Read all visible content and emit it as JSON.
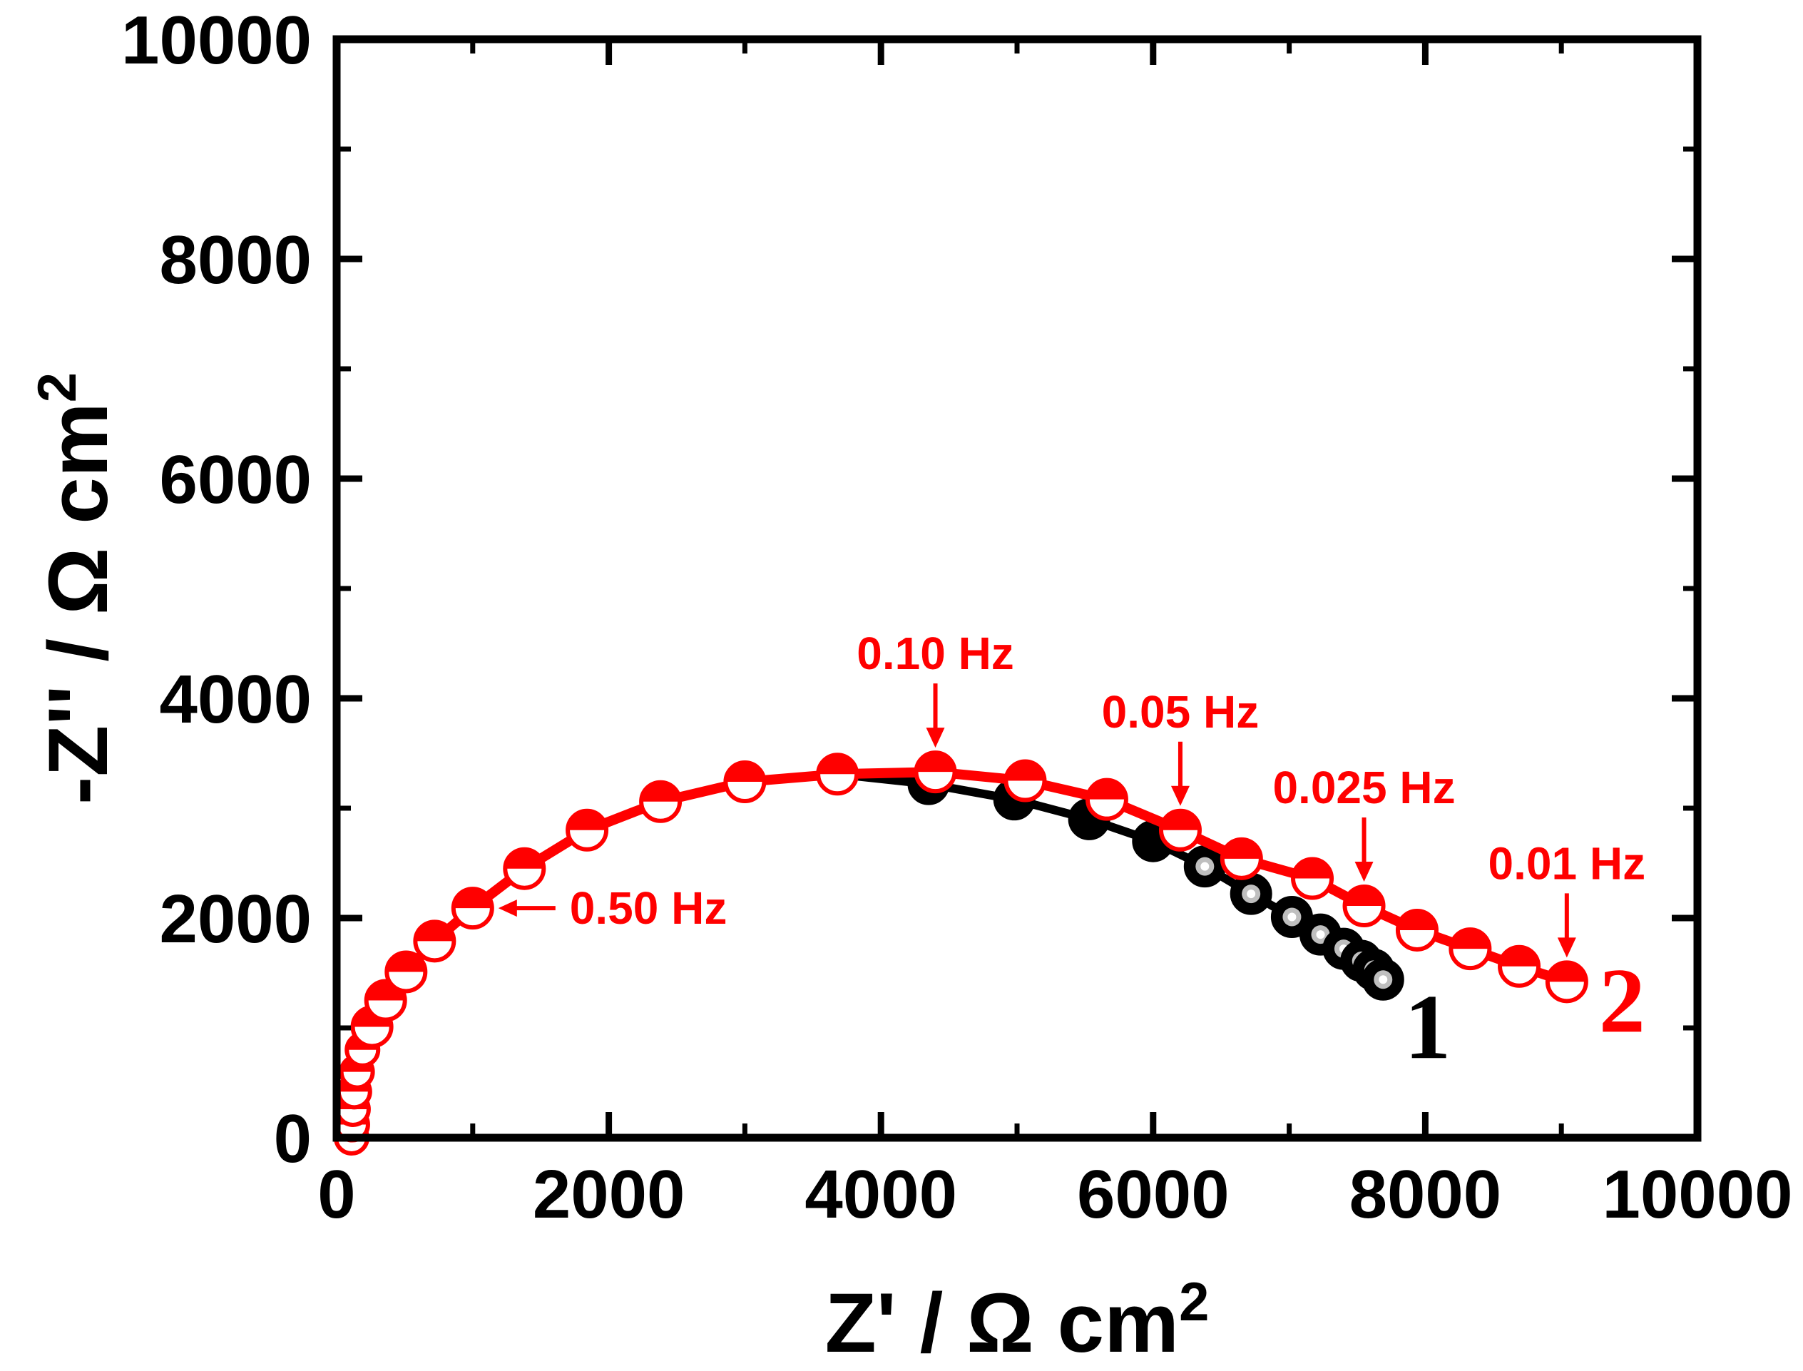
{
  "chart_data": {
    "type": "scatter",
    "xlabel": "Z' / Ω cm",
    "xlabel_sup": "2",
    "ylabel": "-Z'' / Ω cm",
    "ylabel_sup": "2",
    "xlim": [
      0,
      10000
    ],
    "ylim": [
      0,
      10000
    ],
    "xticks": [
      "0",
      "2000",
      "4000",
      "6000",
      "8000",
      "10000"
    ],
    "yticks": [
      "0",
      "2000",
      "4000",
      "6000",
      "8000",
      "10000"
    ],
    "series": [
      {
        "name": "1",
        "color": "#000000",
        "points": [
          [
            110,
            0
          ],
          [
            115,
            120
          ],
          [
            120,
            260
          ],
          [
            130,
            420
          ],
          [
            150,
            600
          ],
          [
            190,
            800
          ],
          [
            260,
            1010
          ],
          [
            360,
            1250
          ],
          [
            510,
            1510
          ],
          [
            720,
            1790
          ],
          [
            1000,
            2090
          ],
          [
            1380,
            2450
          ],
          [
            1840,
            2800
          ],
          [
            2380,
            3060
          ],
          [
            3000,
            3240
          ],
          [
            3680,
            3310
          ],
          [
            4350,
            3220
          ],
          [
            4980,
            3080
          ],
          [
            5530,
            2900
          ],
          [
            6000,
            2700
          ],
          [
            6380,
            2470
          ],
          [
            6720,
            2220
          ],
          [
            7020,
            2010
          ],
          [
            7230,
            1850
          ],
          [
            7400,
            1720
          ],
          [
            7530,
            1610
          ],
          [
            7620,
            1530
          ],
          [
            7690,
            1440
          ]
        ]
      },
      {
        "name": "2",
        "color": "#ff0000",
        "points": [
          [
            110,
            0
          ],
          [
            115,
            120
          ],
          [
            120,
            260
          ],
          [
            130,
            420
          ],
          [
            150,
            600
          ],
          [
            190,
            800
          ],
          [
            260,
            1010
          ],
          [
            360,
            1250
          ],
          [
            510,
            1510
          ],
          [
            720,
            1790
          ],
          [
            1000,
            2090
          ],
          [
            1380,
            2450
          ],
          [
            1840,
            2800
          ],
          [
            2380,
            3060
          ],
          [
            3000,
            3240
          ],
          [
            3680,
            3310
          ],
          [
            4400,
            3330
          ],
          [
            5060,
            3250
          ],
          [
            5660,
            3080
          ],
          [
            6200,
            2800
          ],
          [
            6650,
            2540
          ],
          [
            7170,
            2360
          ],
          [
            7550,
            2110
          ],
          [
            7940,
            1890
          ],
          [
            8330,
            1720
          ],
          [
            8690,
            1560
          ],
          [
            9040,
            1420
          ]
        ]
      }
    ],
    "annotations": [
      {
        "text": "0.50 Hz",
        "x": 1000,
        "y": 2090,
        "arrow": "left"
      },
      {
        "text": "0.10 Hz",
        "x": 4400,
        "y": 3330,
        "arrow": "down"
      },
      {
        "text": "0.05 Hz",
        "x": 6200,
        "y": 2800,
        "arrow": "down"
      },
      {
        "text": "0.025 Hz",
        "x": 7550,
        "y": 2110,
        "arrow": "down"
      },
      {
        "text": "0.01 Hz",
        "x": 9040,
        "y": 1420,
        "arrow": "down"
      }
    ]
  }
}
